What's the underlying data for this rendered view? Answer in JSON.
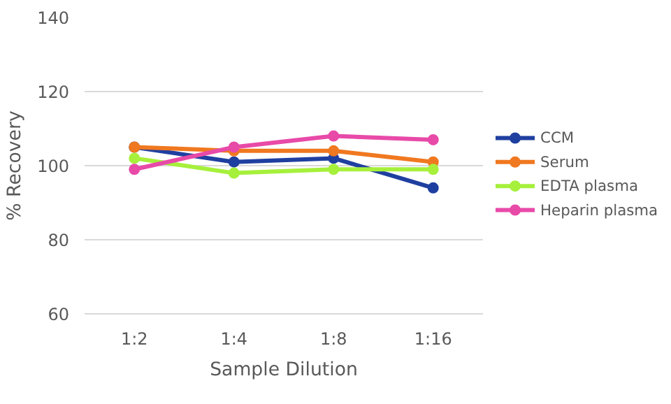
{
  "chart_data": {
    "type": "line",
    "xlabel": "Sample Dilution",
    "ylabel": "% Recovery",
    "categories": [
      "1:2",
      "1:4",
      "1:8",
      "1:16"
    ],
    "series": [
      {
        "name": "CCM",
        "color": "#1f3fa0",
        "values": [
          105,
          101,
          102,
          94
        ]
      },
      {
        "name": "Serum",
        "color": "#f07820",
        "values": [
          105,
          104,
          104,
          101
        ]
      },
      {
        "name": "EDTA plasma",
        "color": "#a6f03c",
        "values": [
          102,
          98,
          99,
          99
        ]
      },
      {
        "name": "Heparin plasma",
        "color": "#e84aa8",
        "values": [
          99,
          105,
          108,
          107
        ]
      }
    ],
    "ylim": [
      60,
      140
    ],
    "yticks": [
      60,
      80,
      100,
      120,
      140
    ],
    "grid": "y",
    "legend": "right",
    "marker": "circle",
    "line_style": "solid"
  }
}
